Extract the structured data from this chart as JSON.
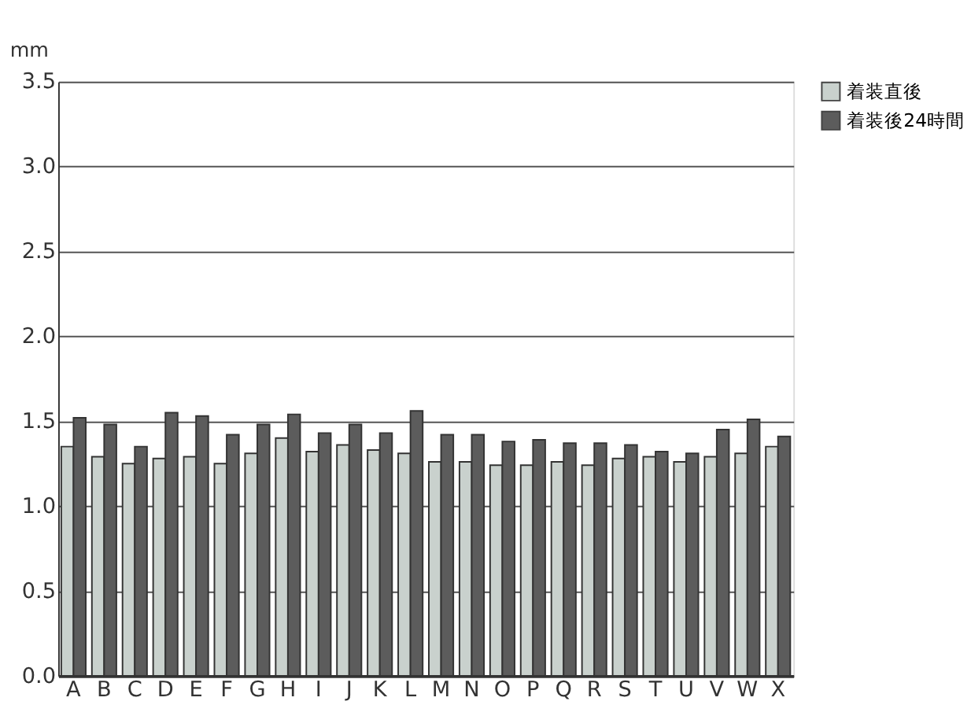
{
  "chart_data": {
    "type": "bar",
    "ylabel": "mm",
    "categories": [
      "A",
      "B",
      "C",
      "D",
      "E",
      "F",
      "G",
      "H",
      "I",
      "J",
      "K",
      "L",
      "M",
      "N",
      "O",
      "P",
      "Q",
      "R",
      "S",
      "T",
      "U",
      "V",
      "W",
      "X"
    ],
    "series": [
      {
        "name": "着装直後",
        "color": "#c9d1cd",
        "values": [
          1.35,
          1.29,
          1.25,
          1.28,
          1.29,
          1.25,
          1.31,
          1.4,
          1.32,
          1.36,
          1.33,
          1.31,
          1.26,
          1.26,
          1.24,
          1.24,
          1.26,
          1.24,
          1.28,
          1.29,
          1.26,
          1.29,
          1.31,
          1.35
        ]
      },
      {
        "name": "着装後24時間",
        "color": "#5c5c5c",
        "values": [
          1.52,
          1.48,
          1.35,
          1.55,
          1.53,
          1.42,
          1.48,
          1.54,
          1.43,
          1.48,
          1.43,
          1.56,
          1.42,
          1.42,
          1.38,
          1.39,
          1.37,
          1.37,
          1.36,
          1.32,
          1.31,
          1.45,
          1.51,
          1.41
        ]
      }
    ],
    "ylim": [
      0,
      3.5
    ],
    "yticks": [
      {
        "value": 0,
        "label": "0.0"
      },
      0.5,
      {
        "value": 1,
        "label": "1.0"
      },
      1.5,
      {
        "value": 2,
        "label": "2.0"
      },
      2.5,
      {
        "value": 3,
        "label": "3.0"
      },
      3.5
    ],
    "grid": "y",
    "legend": "top right"
  }
}
